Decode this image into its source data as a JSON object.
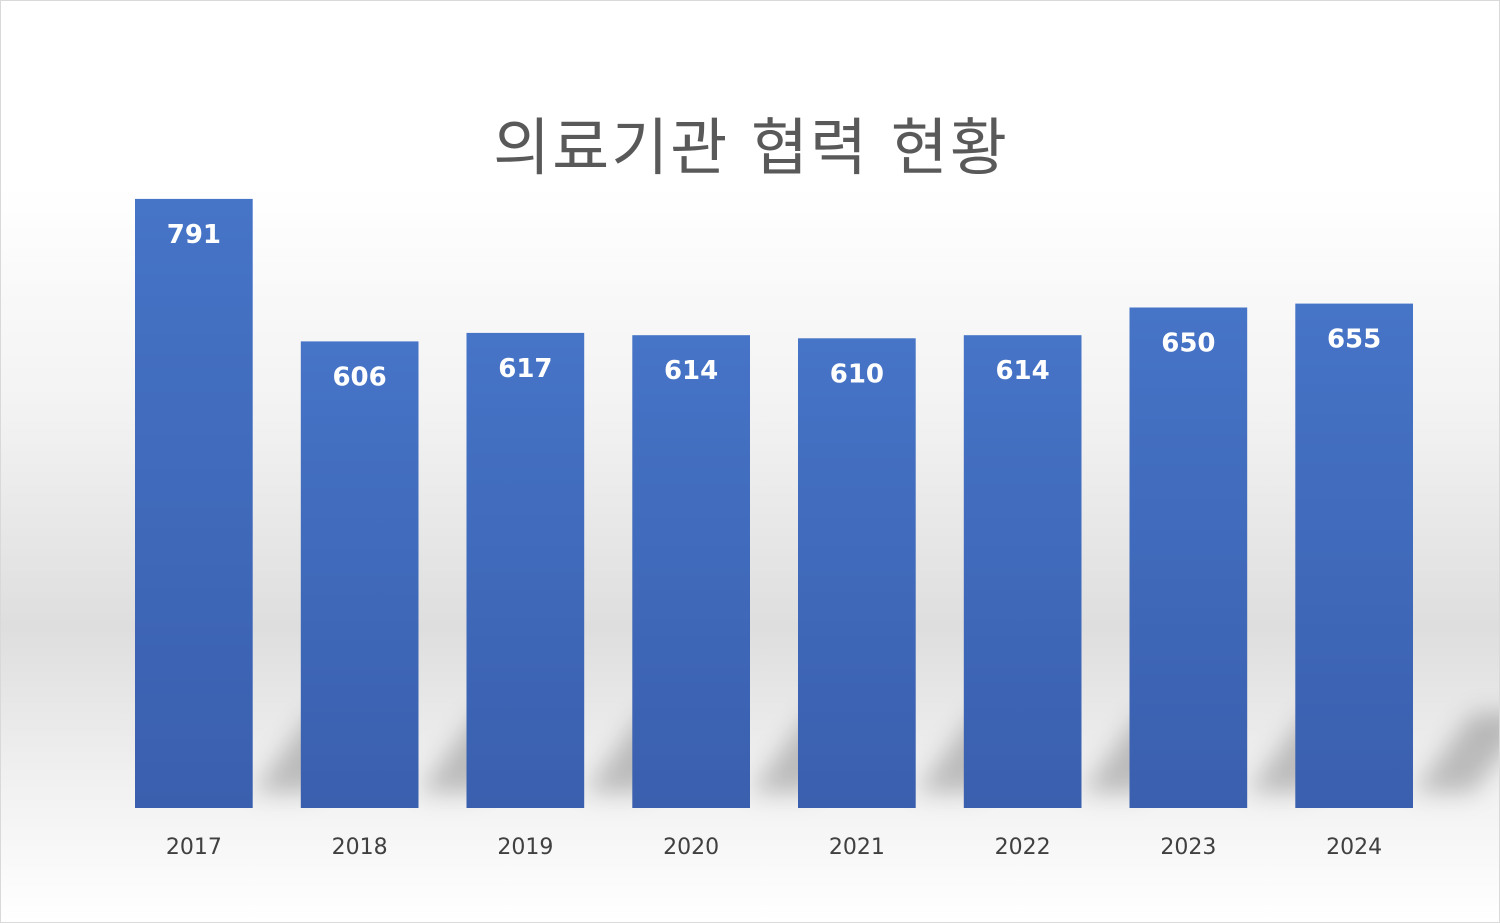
{
  "chart_data": {
    "type": "bar",
    "title": "의료기관 협력 현황",
    "categories": [
      "2017",
      "2018",
      "2019",
      "2020",
      "2021",
      "2022",
      "2023",
      "2024"
    ],
    "values": [
      791,
      606,
      617,
      614,
      610,
      614,
      650,
      655
    ],
    "ylim": [
      0,
      800
    ],
    "grid": false,
    "legend": "none",
    "bar_color": "#4472C4",
    "data_labels": true
  }
}
